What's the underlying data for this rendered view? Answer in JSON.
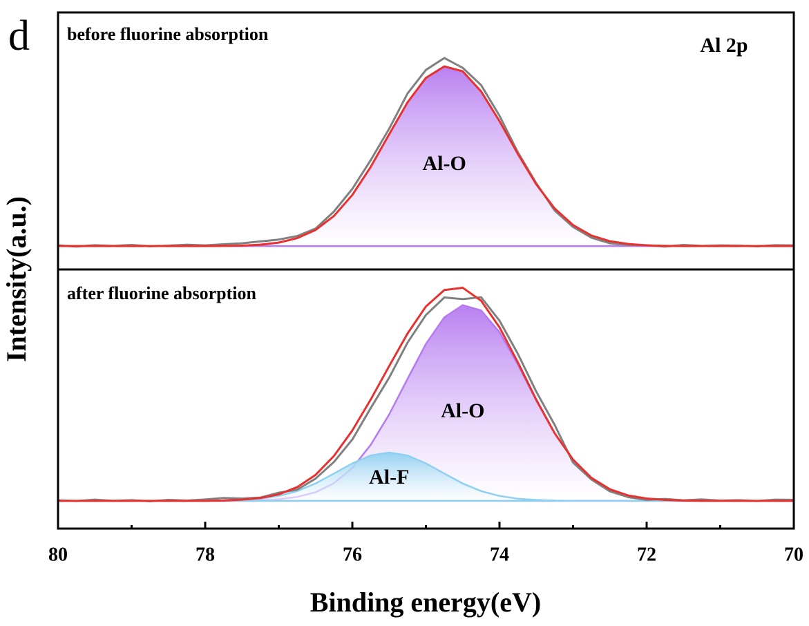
{
  "chart_data": [
    {
      "type": "line",
      "panel_label": "d",
      "title": "before fluorine absorption",
      "annotation": "Al 2p",
      "ylabel": "Intensity(a.u.)",
      "xlim": [
        80,
        70
      ],
      "ylim": [
        -10,
        100
      ],
      "x": [
        80,
        79.75,
        79.5,
        79.25,
        79,
        78.75,
        78.5,
        78.25,
        78,
        77.75,
        77.5,
        77.25,
        77,
        76.75,
        76.5,
        76.25,
        76,
        75.75,
        75.5,
        75.25,
        75,
        74.75,
        74.5,
        74.25,
        74,
        73.75,
        73.5,
        73.25,
        73,
        72.75,
        72.5,
        72.25,
        72,
        71.75,
        71.5,
        71.25,
        71,
        70.75,
        70.5,
        70.25,
        70
      ],
      "series": [
        {
          "name": "Al-O",
          "color": "#b57af0",
          "fill": true,
          "values": [
            0,
            0,
            0,
            0,
            0,
            0,
            0,
            0,
            0,
            0.1,
            0.2,
            0.6,
            1.5,
            3.4,
            6.9,
            12.9,
            21.9,
            33.9,
            47.8,
            61.5,
            72.0,
            76.9,
            74.8,
            66.2,
            53.5,
            39.4,
            26.4,
            16.1,
            9.0,
            4.5,
            2.1,
            0.9,
            0.3,
            0.1,
            0,
            0,
            0,
            0,
            0,
            0,
            0
          ]
        },
        {
          "color": "#808080",
          "values": [
            0.3,
            -0.2,
            0.4,
            0.1,
            0.5,
            -0.1,
            0.2,
            0.6,
            0.3,
            0.8,
            1.2,
            2.0,
            2.8,
            4.3,
            7.5,
            14.8,
            24.5,
            36.8,
            50.2,
            65.3,
            75.4,
            80.5,
            76.3,
            68.9,
            55.8,
            40.1,
            26.9,
            15.2,
            8.2,
            3.6,
            1.2,
            0.5,
            0.4,
            -0.2,
            0.5,
            0.1,
            0.3,
            0.2,
            -0.1,
            0.4,
            0.3
          ]
        },
        {
          "color": "#e8312f",
          "values": [
            0,
            0,
            0,
            0,
            0,
            0,
            0,
            0,
            0,
            0.1,
            0.2,
            0.6,
            1.5,
            3.4,
            6.9,
            12.9,
            21.9,
            33.9,
            47.8,
            61.5,
            72.0,
            76.9,
            74.8,
            66.2,
            53.5,
            39.4,
            26.4,
            16.1,
            9.0,
            4.5,
            2.1,
            0.9,
            0.3,
            0.1,
            0,
            0,
            0,
            0,
            0,
            0,
            0
          ]
        }
      ]
    },
    {
      "type": "line",
      "title": "after fluorine absorption",
      "xlabel": "Binding energy(eV)",
      "xlim": [
        80,
        70
      ],
      "ylim": [
        -12,
        100
      ],
      "xticks": [
        80,
        78,
        76,
        74,
        72,
        70
      ],
      "xminor": [
        79,
        77,
        75,
        73,
        71
      ],
      "x": [
        80,
        79.75,
        79.5,
        79.25,
        79,
        78.75,
        78.5,
        78.25,
        78,
        77.75,
        77.5,
        77.25,
        77,
        76.75,
        76.5,
        76.25,
        76,
        75.75,
        75.5,
        75.25,
        75,
        74.75,
        74.5,
        74.25,
        74,
        73.75,
        73.5,
        73.25,
        73,
        72.75,
        72.5,
        72.25,
        72,
        71.75,
        71.5,
        71.25,
        71,
        70.75,
        70.5,
        70.25,
        70
      ],
      "series": [
        {
          "name": "Al-O",
          "color": "#b57af0",
          "fill": true,
          "values": [
            0,
            0,
            0,
            0,
            0,
            0,
            0,
            0,
            0,
            0,
            0.1,
            0.25,
            0.7,
            1.7,
            3.7,
            7.6,
            14.2,
            24.2,
            37.3,
            52.7,
            67.8,
            79.3,
            84.6,
            82.3,
            72.9,
            58.9,
            43.3,
            29.1,
            17.8,
            9.9,
            5.0,
            2.3,
            1.0,
            0.4,
            0.1,
            0,
            0,
            0,
            0,
            0,
            0
          ]
        },
        {
          "name": "Al-F",
          "color": "#8fd0f0",
          "fill": true,
          "values": [
            0,
            0,
            0,
            0,
            0,
            0,
            0,
            0,
            0,
            0.1,
            0.4,
            0.9,
            2.1,
            4.2,
            7.5,
            11.8,
            16.2,
            19.6,
            20.9,
            19.6,
            16.2,
            11.8,
            7.5,
            4.2,
            2.1,
            0.9,
            0.4,
            0.1,
            0,
            0,
            0,
            0,
            0,
            0,
            0,
            0,
            0,
            0,
            0,
            0,
            0
          ]
        },
        {
          "color": "#808080",
          "values": [
            0.2,
            -0.1,
            0.5,
            0.0,
            0.3,
            -0.2,
            0.4,
            0.1,
            0.6,
            1.2,
            1.0,
            1.4,
            3.5,
            4.8,
            9.6,
            16.8,
            26.5,
            40.1,
            53.2,
            68.4,
            80.3,
            87.9,
            87.2,
            88.0,
            77.9,
            63.5,
            47.2,
            32.8,
            16.5,
            9.2,
            4.1,
            1.6,
            0.4,
            0.8,
            0.2,
            0.6,
            0.1,
            0.3,
            -0.1,
            0.5,
            0.4
          ]
        },
        {
          "color": "#e8312f",
          "values": [
            0,
            0,
            0,
            0,
            0,
            0,
            0,
            0,
            0,
            0.1,
            0.5,
            1.2,
            2.8,
            5.9,
            11.2,
            19.4,
            30.4,
            43.8,
            58.2,
            72.3,
            84.0,
            91.1,
            92.1,
            86.5,
            75.0,
            59.8,
            43.7,
            29.2,
            17.8,
            9.9,
            5.0,
            2.3,
            1.0,
            0.4,
            0.1,
            0,
            0,
            0,
            0,
            0,
            0
          ]
        }
      ]
    }
  ]
}
